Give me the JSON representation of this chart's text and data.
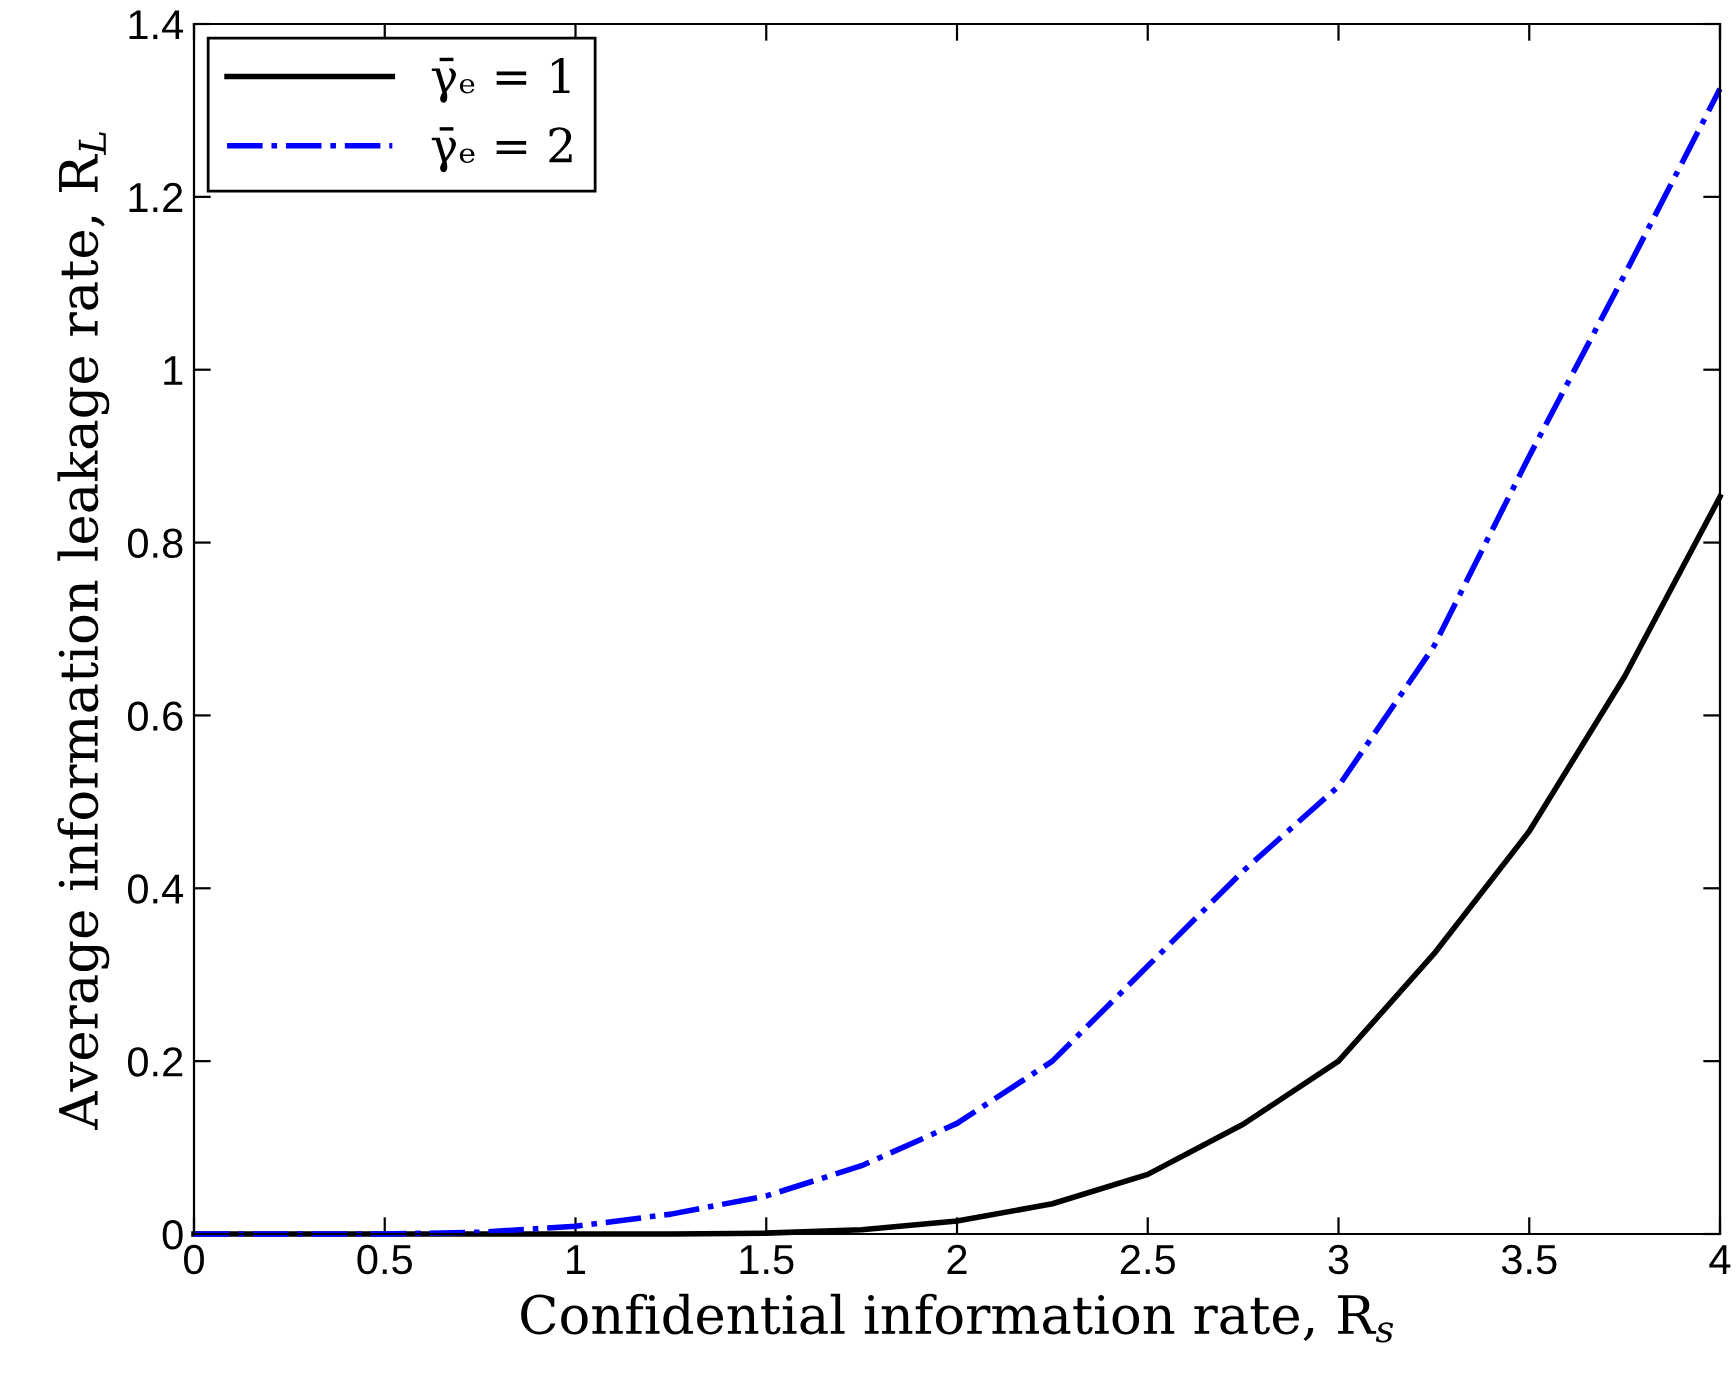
{
  "chart_data": {
    "type": "line",
    "xlabel": "Confidential information rate, R$_{s}$",
    "ylabel": "Average information leakage rate, R$_{L}$",
    "x": [
      0,
      0.5,
      0.75,
      1,
      1.25,
      1.5,
      1.75,
      2,
      2.25,
      2.5,
      2.75,
      3,
      3.25,
      3.5,
      3.75,
      4
    ],
    "series": [
      {
        "name": "γ̄ₑ = 1",
        "color": "#000000",
        "line_style": "solid",
        "values": [
          0,
          0,
          0,
          0,
          0,
          0.001,
          0.005,
          0.015,
          0.035,
          0.069,
          0.127,
          0.2,
          0.324,
          0.466,
          0.645,
          0.853
        ]
      },
      {
        "name": "γ̄ₑ = 2",
        "color": "#0000ff",
        "line_style": "dashdot",
        "values": [
          0,
          0,
          0.002,
          0.009,
          0.023,
          0.044,
          0.079,
          0.128,
          0.2,
          0.31,
          0.42,
          0.518,
          0.68,
          0.9,
          1.11,
          1.325
        ]
      }
    ],
    "xlim": [
      0,
      4
    ],
    "ylim": [
      0,
      1.4
    ],
    "xticks": [
      0,
      0.5,
      1,
      1.5,
      2,
      2.5,
      3,
      3.5,
      4
    ],
    "yticks": [
      0,
      0.2,
      0.4,
      0.6,
      0.8,
      {
        "value": 1,
        "label": "1"
      },
      1.2,
      1.4
    ],
    "grid": false,
    "legend": "top left",
    "marker": "none"
  }
}
